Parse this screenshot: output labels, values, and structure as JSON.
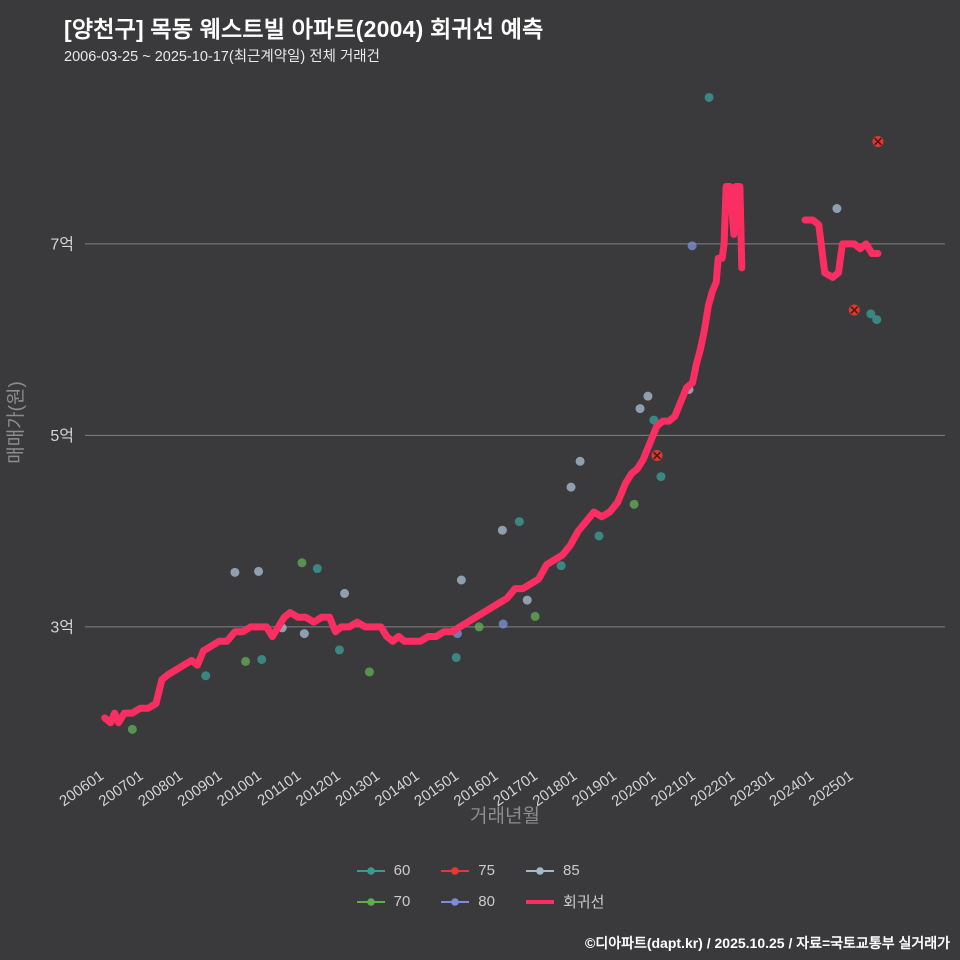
{
  "header": {
    "title": "[양천구] 목동 웨스트빌 아파트(2004) 회귀선 예측",
    "subtitle": "2006-03-25 ~ 2025-10-17(최근계약일) 전체 거래건"
  },
  "footer": {
    "credit": "©디아파트(dapt.kr) / 2025.10.25 / 자료=국토교통부 실거래가"
  },
  "colors": {
    "background": "#3a3a3c",
    "grid": "#828282",
    "tick_label": "#d4d4d4",
    "axis_title": "#8d8d8d",
    "regression": "#fb2e62"
  },
  "chart_data": {
    "type": "scatter",
    "title": "[양천구] 목동 웨스트빌 아파트(2004) 회귀선 예측",
    "subtitle": "2006-03-25 ~ 2025-10-17(최근계약일) 전체 거래건",
    "xlabel": "거래년월",
    "ylabel": "매매가(원)",
    "grid": "horizontal-only",
    "legend_position": "bottom",
    "x_range": [
      2005.5,
      2027.3
    ],
    "y_range": [
      1.61,
      8.66
    ],
    "y_ticks": [
      {
        "label": "3억",
        "value": 3
      },
      {
        "label": "5억",
        "value": 5
      },
      {
        "label": "7억",
        "value": 7
      }
    ],
    "x_ticks": [
      {
        "label": "200601",
        "value": 2006
      },
      {
        "label": "200701",
        "value": 2007
      },
      {
        "label": "200801",
        "value": 2008
      },
      {
        "label": "200901",
        "value": 2009
      },
      {
        "label": "201001",
        "value": 2010
      },
      {
        "label": "201101",
        "value": 2011
      },
      {
        "label": "201201",
        "value": 2012
      },
      {
        "label": "201301",
        "value": 2013
      },
      {
        "label": "201401",
        "value": 2014
      },
      {
        "label": "201501",
        "value": 2015
      },
      {
        "label": "201601",
        "value": 2016
      },
      {
        "label": "201701",
        "value": 2017
      },
      {
        "label": "201801",
        "value": 2018
      },
      {
        "label": "201901",
        "value": 2019
      },
      {
        "label": "202001",
        "value": 2020
      },
      {
        "label": "202101",
        "value": 2021
      },
      {
        "label": "202201",
        "value": 2022
      },
      {
        "label": "202301",
        "value": 2023
      },
      {
        "label": "202401",
        "value": 2024
      },
      {
        "label": "202501",
        "value": 2025
      }
    ],
    "series": [
      {
        "name": "60",
        "color": "#3a9a93",
        "marker": "circle",
        "points": [
          [
            2008.56,
            2.49
          ],
          [
            2009.98,
            2.66
          ],
          [
            2011.39,
            3.61
          ],
          [
            2011.95,
            2.76
          ],
          [
            2014.91,
            2.68
          ],
          [
            2016.51,
            4.1
          ],
          [
            2017.57,
            3.64
          ],
          [
            2018.53,
            3.95
          ],
          [
            2019.92,
            5.16
          ],
          [
            2020.1,
            4.57
          ],
          [
            2021.32,
            8.53
          ],
          [
            2025.42,
            6.27
          ],
          [
            2025.57,
            6.21
          ]
        ]
      },
      {
        "name": "70",
        "color": "#63aa55",
        "marker": "circle",
        "points": [
          [
            2006.7,
            1.93
          ],
          [
            2009.57,
            2.64
          ],
          [
            2011.0,
            3.67
          ],
          [
            2012.71,
            2.53
          ],
          [
            2015.49,
            3.0
          ],
          [
            2016.91,
            3.11
          ],
          [
            2019.42,
            4.28
          ]
        ]
      },
      {
        "name": "75",
        "color": "#e23b33",
        "marker": "x-circle",
        "points": [
          [
            2020.0,
            4.79
          ],
          [
            2025.0,
            6.31
          ],
          [
            2025.6,
            8.07
          ]
        ]
      },
      {
        "name": "80",
        "color": "#7b8fd0",
        "marker": "circle",
        "points": [
          [
            2014.94,
            2.93
          ],
          [
            2016.1,
            3.03
          ],
          [
            2020.89,
            6.98
          ]
        ]
      },
      {
        "name": "85",
        "color": "#a4bac9",
        "marker": "circle",
        "points": [
          [
            2009.3,
            3.57
          ],
          [
            2009.9,
            3.58
          ],
          [
            2010.5,
            2.99
          ],
          [
            2011.06,
            2.93
          ],
          [
            2012.08,
            3.35
          ],
          [
            2015.04,
            3.49
          ],
          [
            2016.08,
            4.01
          ],
          [
            2016.71,
            3.28
          ],
          [
            2017.82,
            4.46
          ],
          [
            2018.05,
            4.73
          ],
          [
            2019.57,
            5.28
          ],
          [
            2019.77,
            5.41
          ],
          [
            2020.81,
            5.48
          ],
          [
            2024.56,
            7.37
          ]
        ]
      },
      {
        "name": "회귀선",
        "color": "#fb2e62",
        "type": "line",
        "width": 7,
        "segments": [
          [
            [
              2006.0,
              2.05
            ],
            [
              2006.15,
              2.0
            ],
            [
              2006.25,
              2.1
            ],
            [
              2006.35,
              2.0
            ],
            [
              2006.5,
              2.1
            ],
            [
              2006.7,
              2.1
            ],
            [
              2006.9,
              2.15
            ],
            [
              2007.1,
              2.15
            ],
            [
              2007.3,
              2.2
            ],
            [
              2007.45,
              2.45
            ],
            [
              2007.6,
              2.5
            ],
            [
              2007.8,
              2.55
            ],
            [
              2008.0,
              2.6
            ],
            [
              2008.2,
              2.65
            ],
            [
              2008.35,
              2.6
            ],
            [
              2008.5,
              2.75
            ],
            [
              2008.7,
              2.8
            ],
            [
              2008.9,
              2.85
            ],
            [
              2009.1,
              2.85
            ],
            [
              2009.3,
              2.95
            ],
            [
              2009.5,
              2.95
            ],
            [
              2009.7,
              3.0
            ],
            [
              2009.9,
              3.0
            ],
            [
              2010.1,
              3.0
            ],
            [
              2010.25,
              2.9
            ],
            [
              2010.4,
              3.0
            ],
            [
              2010.55,
              3.1
            ],
            [
              2010.7,
              3.15
            ],
            [
              2010.9,
              3.1
            ],
            [
              2011.1,
              3.1
            ],
            [
              2011.3,
              3.05
            ],
            [
              2011.5,
              3.1
            ],
            [
              2011.7,
              3.1
            ],
            [
              2011.85,
              2.95
            ],
            [
              2012.0,
              3.0
            ],
            [
              2012.2,
              3.0
            ],
            [
              2012.4,
              3.05
            ],
            [
              2012.6,
              3.0
            ],
            [
              2012.8,
              3.0
            ],
            [
              2013.0,
              3.0
            ],
            [
              2013.15,
              2.9
            ],
            [
              2013.3,
              2.85
            ],
            [
              2013.45,
              2.9
            ],
            [
              2013.6,
              2.85
            ],
            [
              2013.8,
              2.85
            ],
            [
              2014.0,
              2.85
            ],
            [
              2014.2,
              2.9
            ],
            [
              2014.4,
              2.9
            ],
            [
              2014.6,
              2.95
            ],
            [
              2014.8,
              2.95
            ],
            [
              2015.0,
              3.0
            ],
            [
              2015.2,
              3.05
            ],
            [
              2015.4,
              3.1
            ],
            [
              2015.6,
              3.15
            ],
            [
              2015.8,
              3.2
            ],
            [
              2016.0,
              3.25
            ],
            [
              2016.2,
              3.3
            ],
            [
              2016.4,
              3.4
            ],
            [
              2016.6,
              3.4
            ],
            [
              2016.8,
              3.45
            ],
            [
              2017.0,
              3.5
            ],
            [
              2017.2,
              3.65
            ],
            [
              2017.4,
              3.7
            ],
            [
              2017.6,
              3.75
            ],
            [
              2017.8,
              3.85
            ],
            [
              2018.0,
              4.0
            ],
            [
              2018.2,
              4.1
            ],
            [
              2018.4,
              4.2
            ],
            [
              2018.6,
              4.15
            ],
            [
              2018.8,
              4.2
            ],
            [
              2019.0,
              4.3
            ],
            [
              2019.2,
              4.5
            ],
            [
              2019.35,
              4.6
            ],
            [
              2019.5,
              4.65
            ],
            [
              2019.65,
              4.75
            ],
            [
              2019.8,
              4.9
            ],
            [
              2020.0,
              5.1
            ],
            [
              2020.15,
              5.15
            ],
            [
              2020.3,
              5.15
            ],
            [
              2020.45,
              5.2
            ],
            [
              2020.6,
              5.35
            ],
            [
              2020.75,
              5.5
            ],
            [
              2020.9,
              5.55
            ],
            [
              2021.0,
              5.75
            ],
            [
              2021.1,
              5.9
            ],
            [
              2021.2,
              6.1
            ],
            [
              2021.3,
              6.35
            ],
            [
              2021.4,
              6.5
            ],
            [
              2021.5,
              6.6
            ],
            [
              2021.55,
              6.85
            ],
            [
              2021.65,
              6.85
            ],
            [
              2021.7,
              7.0
            ],
            [
              2021.75,
              7.6
            ],
            [
              2021.85,
              7.6
            ],
            [
              2021.95,
              7.1
            ],
            [
              2022.0,
              7.6
            ],
            [
              2022.1,
              7.6
            ],
            [
              2022.15,
              6.75
            ]
          ],
          [
            [
              2023.75,
              7.25
            ],
            [
              2023.95,
              7.25
            ],
            [
              2024.1,
              7.2
            ],
            [
              2024.25,
              6.7
            ],
            [
              2024.45,
              6.65
            ],
            [
              2024.6,
              6.7
            ],
            [
              2024.7,
              7.0
            ],
            [
              2024.85,
              7.0
            ],
            [
              2025.0,
              7.0
            ],
            [
              2025.15,
              6.95
            ],
            [
              2025.3,
              7.0
            ],
            [
              2025.45,
              6.9
            ],
            [
              2025.6,
              6.9
            ]
          ]
        ]
      }
    ],
    "legend": {
      "rows": [
        [
          "60",
          "75",
          "85"
        ],
        [
          "70",
          "80",
          "회귀선"
        ]
      ]
    }
  }
}
